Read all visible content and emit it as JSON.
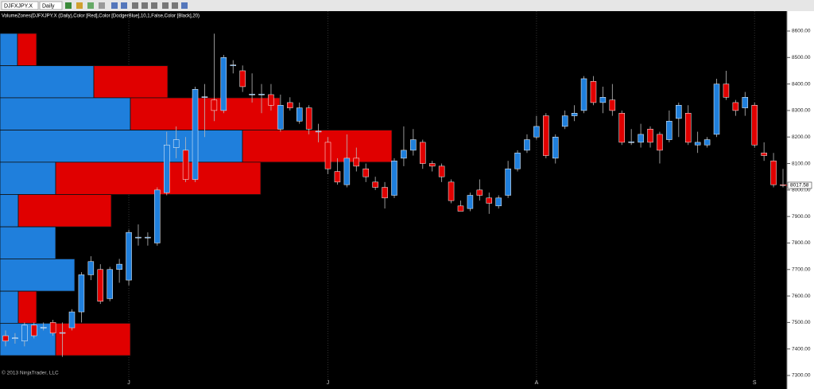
{
  "toolbar": {
    "instrument": "DJFXJPY.X",
    "period": "Daily"
  },
  "chart_data": {
    "type": "candlestick",
    "indicator_label": "VolumeZones(DJFXJPY.X (Daily),Color [Red],Color [DodgerBlue],10,1,False,Color [Black],20)",
    "copyright": "© 2013 NinjaTrader, LLC",
    "up_color": "#1f7fdc",
    "down_color": "#e00000",
    "categories": [
      null,
      null,
      null,
      null,
      null,
      null,
      null,
      null,
      null,
      null,
      null,
      null,
      null,
      "J",
      null,
      null,
      null,
      null,
      null,
      null,
      null,
      null,
      null,
      null,
      null,
      null,
      null,
      null,
      null,
      null,
      null,
      null,
      null,
      null,
      "J",
      null,
      null,
      null,
      null,
      null,
      null,
      null,
      null,
      null,
      null,
      null,
      null,
      null,
      null,
      null,
      null,
      null,
      null,
      null,
      null,
      null,
      "A",
      null,
      null,
      null,
      null,
      null,
      null,
      null,
      null,
      null,
      null,
      null,
      null,
      null,
      null,
      null,
      null,
      null,
      null,
      null,
      null,
      null,
      null,
      "S",
      null,
      null,
      null
    ],
    "open": [
      7450,
      7440,
      7430,
      7490,
      7480,
      7500,
      7460,
      7480,
      7540,
      7680,
      7700,
      7590,
      7700,
      7660,
      7820,
      7820,
      7800,
      7990,
      8160,
      8150,
      8040,
      8350,
      8340,
      8300,
      8470,
      8450,
      8360,
      8360,
      8360,
      8230,
      8330,
      8260,
      8310,
      8220,
      8180,
      8070,
      8020,
      8120,
      8080,
      8030,
      8010,
      7980,
      8120,
      8150,
      8180,
      8100,
      8090,
      8030,
      7940,
      7930,
      8000,
      7970,
      7940,
      7980,
      8080,
      8150,
      8200,
      8280,
      8120,
      8240,
      8280,
      8300,
      8410,
      8330,
      8340,
      8290,
      8180,
      8180,
      8230,
      8210,
      8190,
      8270,
      8290,
      8170,
      8170,
      8210,
      8400,
      8330,
      8310,
      8320,
      8140,
      8110,
      8020
    ],
    "high": [
      7470,
      7460,
      7500,
      7500,
      7500,
      7510,
      7500,
      7550,
      7690,
      7750,
      7720,
      7710,
      7740,
      7850,
      7870,
      7840,
      8010,
      8220,
      8240,
      8200,
      8390,
      8400,
      8590,
      8510,
      8490,
      8470,
      8440,
      8400,
      8400,
      8360,
      8350,
      8330,
      8320,
      8250,
      8200,
      8120,
      8210,
      8160,
      8100,
      8050,
      8030,
      8120,
      8240,
      8230,
      8190,
      8110,
      8100,
      8040,
      7960,
      7990,
      8040,
      7990,
      7980,
      8110,
      8150,
      8210,
      8280,
      8290,
      8210,
      8300,
      8320,
      8430,
      8430,
      8390,
      8400,
      8300,
      8230,
      8250,
      8240,
      8220,
      8300,
      8330,
      8320,
      8220,
      8200,
      8420,
      8450,
      8340,
      8370,
      8330,
      8180,
      8140,
      8080
    ],
    "low": [
      7410,
      7420,
      7410,
      7440,
      7470,
      7450,
      7370,
      7470,
      7500,
      7660,
      7570,
      7580,
      7650,
      7640,
      7790,
      7790,
      7790,
      7980,
      8120,
      8030,
      8030,
      8200,
      8260,
      8290,
      8440,
      8370,
      8330,
      8290,
      8300,
      8220,
      8300,
      8250,
      8210,
      8180,
      8060,
      8020,
      8010,
      8070,
      8030,
      8000,
      7930,
      7970,
      8090,
      8130,
      8080,
      8070,
      8030,
      7950,
      7920,
      7920,
      7960,
      7910,
      7930,
      7970,
      8070,
      8140,
      8190,
      8120,
      8100,
      8230,
      8260,
      8290,
      8320,
      8290,
      8280,
      8170,
      8170,
      8160,
      8160,
      8100,
      8180,
      8200,
      8170,
      8140,
      8160,
      8200,
      8340,
      8280,
      8280,
      8160,
      8110,
      8010,
      8010
    ],
    "close": [
      7430,
      7442,
      7490,
      7450,
      7482,
      7460,
      7462,
      7540,
      7680,
      7730,
      7580,
      7700,
      7720,
      7840,
      7822,
      7822,
      8000,
      8170,
      8190,
      8040,
      8380,
      8352,
      8300,
      8500,
      8472,
      8390,
      8362,
      8362,
      8320,
      8320,
      8310,
      8310,
      8230,
      8222,
      8080,
      8030,
      8120,
      8090,
      8050,
      8010,
      7970,
      8110,
      8150,
      8190,
      8100,
      8090,
      8050,
      7960,
      7920,
      7980,
      7980,
      7950,
      7970,
      8080,
      8140,
      8190,
      8240,
      8130,
      8200,
      8280,
      8290,
      8420,
      8330,
      8350,
      8300,
      8180,
      8182,
      8210,
      8180,
      8150,
      8260,
      8320,
      8180,
      8180,
      8190,
      8400,
      8350,
      8300,
      8350,
      8170,
      8130,
      8020,
      8017.58
    ],
    "volume_zones": {
      "edges": [
        8591,
        8469,
        8348,
        8226,
        8105,
        7983,
        7861,
        7740,
        7618,
        7497,
        7375
      ],
      "up": [
        22,
        118,
        164,
        305,
        70,
        23,
        70,
        94,
        23,
        70
      ],
      "down": [
        24,
        93,
        188,
        188,
        258,
        117,
        0,
        0,
        23,
        94
      ]
    },
    "ylim": [
      7300,
      8600
    ],
    "yticks": [
      {
        "value": 7300,
        "label": "7300.00"
      },
      {
        "value": 7400,
        "label": "7400.00"
      },
      {
        "value": 7500,
        "label": "7500.00"
      },
      {
        "value": 7600,
        "label": "7600.00"
      },
      {
        "value": 7700,
        "label": "7700.00"
      },
      {
        "value": 7800,
        "label": "7800.00"
      },
      {
        "value": 7900,
        "label": "7900.00"
      },
      {
        "value": 8000,
        "label": "8000.00"
      },
      {
        "value": 8100,
        "label": "8100.00"
      },
      {
        "value": 8200,
        "label": "8200.00"
      },
      {
        "value": 8300,
        "label": "8300.00"
      },
      {
        "value": 8400,
        "label": "8400.00"
      },
      {
        "value": 8500,
        "label": "8500.00"
      },
      {
        "value": 8600,
        "label": "8600.00"
      }
    ]
  }
}
